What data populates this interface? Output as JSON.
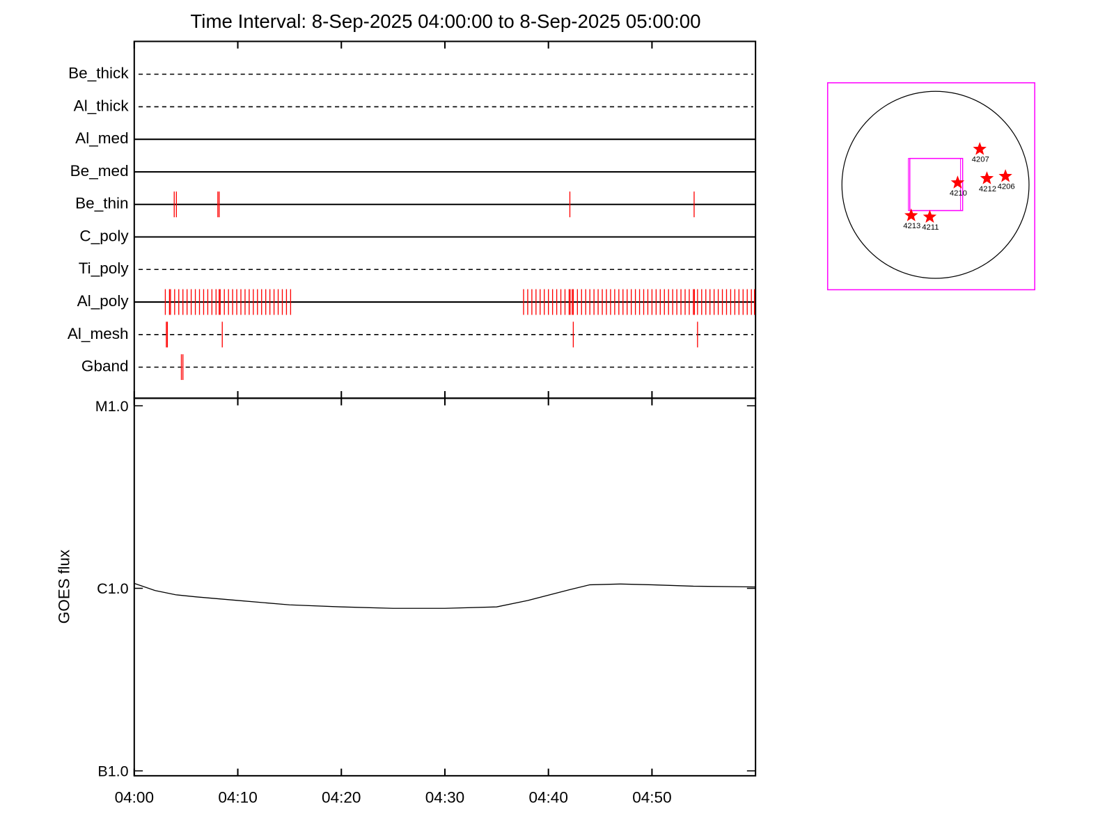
{
  "chart_data": [
    {
      "type": "timeline",
      "title": "Time Interval:  8-Sep-2025 04:00:00 to  8-Sep-2025 05:00:00",
      "xlim": [
        0,
        60
      ],
      "event_color": "#ff0000",
      "series": [
        {
          "name": "Be_thick",
          "line": "dashed",
          "x": []
        },
        {
          "name": "Al_thick",
          "line": "dashed",
          "x": []
        },
        {
          "name": "Al_med",
          "line": "solid",
          "x": []
        },
        {
          "name": "Be_med",
          "line": "solid",
          "x": []
        },
        {
          "name": "Be_thin",
          "line": "solid",
          "x": [
            3.86,
            4.07,
            8.07,
            8.2,
            42.07,
            54.07
          ]
        },
        {
          "name": "C_poly",
          "line": "solid",
          "x": []
        },
        {
          "name": "Ti_poly",
          "line": "dashed",
          "x": []
        },
        {
          "name": "Al_poly",
          "line": "solid",
          "x": [
            3.0,
            3.4,
            3.5,
            3.9,
            4.3,
            4.7,
            5.1,
            5.5,
            5.9,
            6.3,
            6.7,
            7.1,
            7.5,
            7.9,
            8.2,
            8.3,
            8.7,
            9.1,
            9.5,
            9.9,
            10.3,
            10.7,
            11.1,
            11.5,
            11.9,
            12.3,
            12.7,
            13.1,
            13.5,
            13.9,
            14.3,
            14.7,
            15.1,
            37.6,
            38.0,
            38.4,
            38.8,
            39.2,
            39.6,
            40.0,
            40.4,
            40.8,
            41.2,
            41.6,
            42.0,
            42.1,
            42.3,
            42.4,
            42.8,
            43.2,
            43.6,
            44.0,
            44.4,
            44.8,
            45.2,
            45.6,
            46.0,
            46.4,
            46.8,
            47.2,
            47.6,
            48.0,
            48.4,
            48.8,
            49.2,
            49.6,
            50.0,
            50.4,
            50.8,
            51.2,
            51.6,
            52.0,
            52.4,
            52.8,
            53.2,
            53.6,
            54.0,
            54.1,
            54.4,
            54.8,
            55.2,
            55.6,
            56.0,
            56.4,
            56.8,
            57.2,
            57.6,
            58.0,
            58.4,
            58.8,
            59.2,
            59.6,
            59.9
          ]
        },
        {
          "name": "Al_mesh",
          "line": "dashed",
          "x": [
            3.1,
            3.2,
            8.5,
            42.4,
            54.4
          ]
        },
        {
          "name": "Gband",
          "line": "dashed",
          "x": [
            4.55,
            4.7
          ]
        }
      ]
    },
    {
      "type": "line",
      "ylabel": "GOES flux",
      "log_y": true,
      "color": "#000000",
      "xlim": [
        0,
        60
      ],
      "xticks": [
        {
          "value": 0,
          "label": "04:00"
        },
        {
          "value": 10,
          "label": "04:10"
        },
        {
          "value": 20,
          "label": "04:20"
        },
        {
          "value": 30,
          "label": "04:30"
        },
        {
          "value": 40,
          "label": "04:40"
        },
        {
          "value": 50,
          "label": "04:50"
        }
      ],
      "ylim": [
        9.4e-08,
        1.1e-05
      ],
      "yticks": [
        {
          "value": 1e-07,
          "label": "B1.0"
        },
        {
          "value": 1e-06,
          "label": "C1.0"
        },
        {
          "value": 1e-05,
          "label": "M1.0"
        }
      ],
      "x": [
        0,
        2,
        4,
        6,
        10,
        15,
        20,
        25,
        30,
        35,
        38,
        42,
        44,
        47,
        50,
        54,
        60
      ],
      "values": [
        1.065e-06,
        9.73e-07,
        9.22e-07,
        8.97e-07,
        8.58e-07,
        8.12e-07,
        7.91e-07,
        7.77e-07,
        7.77e-07,
        7.91e-07,
        8.58e-07,
        9.82e-07,
        1.046e-06,
        1.056e-06,
        1.046e-06,
        1.027e-06,
        1.018e-06
      ]
    },
    {
      "type": "map",
      "frame_color": "#ff00ff",
      "marker_color": "#ff0000",
      "markers": [
        {
          "label": "4207"
        },
        {
          "label": "4210"
        },
        {
          "label": "4212"
        },
        {
          "label": "4206"
        },
        {
          "label": "4213"
        },
        {
          "label": "4211"
        }
      ]
    }
  ]
}
